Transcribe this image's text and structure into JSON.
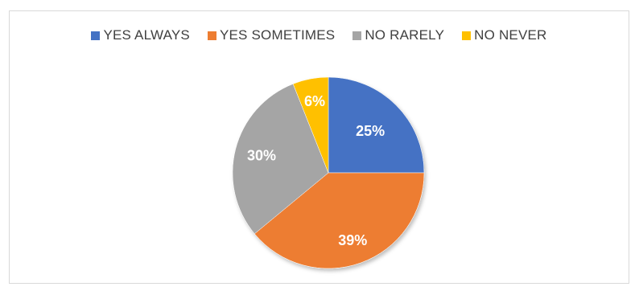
{
  "chart_data": {
    "type": "pie",
    "title": "",
    "legend_position": "top",
    "categories": [
      "YES ALWAYS",
      "YES SOMETIMES",
      "NO RARELY",
      "NO NEVER"
    ],
    "values": [
      25,
      39,
      30,
      6
    ],
    "labels": [
      "25%",
      "39%",
      "30%",
      "6%"
    ],
    "colors": [
      "#4472C4",
      "#ED7D31",
      "#A5A5A5",
      "#FFC000"
    ],
    "start_angle_deg": 0,
    "direction": "clockwise"
  }
}
